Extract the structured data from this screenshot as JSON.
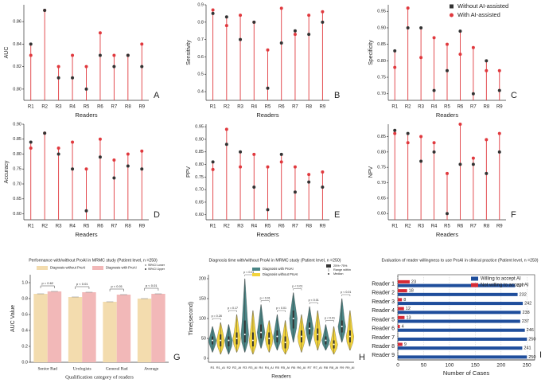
{
  "chart_data": [
    {
      "type": "lollipop",
      "panel": "A",
      "y_label": "AUC",
      "x_label": "Readers",
      "categories": [
        "R1",
        "R2",
        "R3",
        "R4",
        "R5",
        "R6",
        "R7",
        "R8",
        "R9"
      ],
      "series": [
        {
          "name": "Without AI-assisted",
          "color": "#333333",
          "values": [
            0.84,
            0.87,
            0.81,
            0.81,
            0.8,
            0.83,
            0.82,
            0.83,
            0.82
          ]
        },
        {
          "name": "With AI-assisted",
          "color": "#e0393e",
          "values": [
            0.83,
            0.87,
            0.82,
            0.83,
            0.82,
            0.85,
            0.83,
            0.83,
            0.84
          ]
        }
      ],
      "ylim": [
        0.79,
        0.875
      ],
      "yticks": [
        {
          "value": 0.8,
          "label": "0.80"
        },
        0.82,
        0.84,
        0.86
      ]
    },
    {
      "type": "lollipop",
      "panel": "B",
      "y_label": "Sensitivity",
      "x_label": "Readers",
      "categories": [
        "R1",
        "R2",
        "R3",
        "R4",
        "R5",
        "R6",
        "R7",
        "R8",
        "R9"
      ],
      "series": [
        {
          "name": "Without AI-assisted",
          "color": "#333333",
          "values": [
            0.85,
            0.83,
            0.7,
            0.8,
            0.42,
            0.68,
            0.75,
            0.73,
            0.8
          ]
        },
        {
          "name": "With AI-assisted",
          "color": "#e0393e",
          "values": [
            0.87,
            0.78,
            0.84,
            0.8,
            0.64,
            0.88,
            0.73,
            0.84,
            0.86
          ]
        }
      ],
      "ylim": [
        0.35,
        0.9
      ],
      "yticks": [
        0.4,
        0.5,
        0.6,
        0.7,
        0.8,
        0.9
      ]
    },
    {
      "type": "lollipop",
      "panel": "C",
      "y_label": "Specificity",
      "x_label": "Readers",
      "legend": "upper right",
      "categories": [
        "R1",
        "R2",
        "R3",
        "R4",
        "R5",
        "R6",
        "R7",
        "R8",
        "R9"
      ],
      "series": [
        {
          "name": "Without AI-assisted",
          "color": "#333333",
          "values": [
            0.83,
            0.9,
            0.9,
            0.71,
            0.77,
            0.89,
            0.7,
            0.8,
            0.71
          ]
        },
        {
          "name": "With AI-assisted",
          "color": "#e0393e",
          "values": [
            0.78,
            0.96,
            0.81,
            0.87,
            0.85,
            0.82,
            0.84,
            0.77,
            0.77
          ]
        }
      ],
      "ylim": [
        0.68,
        0.97
      ],
      "yticks": [
        {
          "value": 0.7,
          "label": "0.70"
        },
        0.75,
        {
          "value": 0.8,
          "label": "0.80"
        },
        0.85,
        {
          "value": 0.9,
          "label": "0.90"
        },
        0.95
      ]
    },
    {
      "type": "lollipop",
      "panel": "D",
      "y_label": "Accuracy",
      "x_label": "Readers",
      "categories": [
        "R1",
        "R2",
        "R3",
        "R4",
        "R5",
        "R6",
        "R7",
        "R8",
        "R9"
      ],
      "series": [
        {
          "name": "Without AI-assisted",
          "color": "#333333",
          "values": [
            0.84,
            0.87,
            0.8,
            0.75,
            0.61,
            0.79,
            0.72,
            0.76,
            0.75
          ]
        },
        {
          "name": "With AI-assisted",
          "color": "#e0393e",
          "values": [
            0.82,
            0.87,
            0.82,
            0.84,
            0.75,
            0.85,
            0.78,
            0.8,
            0.81
          ]
        }
      ],
      "ylim": [
        0.58,
        0.9
      ],
      "yticks": [
        {
          "value": 0.6,
          "label": "0.60"
        },
        0.65,
        {
          "value": 0.7,
          "label": "0.70"
        },
        0.75,
        {
          "value": 0.8,
          "label": "0.80"
        },
        0.85,
        {
          "value": 0.9,
          "label": "0.90"
        }
      ]
    },
    {
      "type": "lollipop",
      "panel": "E",
      "y_label": "PPV",
      "x_label": "Readers",
      "categories": [
        "R1",
        "R2",
        "R3",
        "R4",
        "R5",
        "R6",
        "R7",
        "R8",
        "R9"
      ],
      "series": [
        {
          "name": "Without AI-assisted",
          "color": "#333333",
          "values": [
            0.81,
            0.88,
            0.85,
            0.71,
            0.62,
            0.84,
            0.69,
            0.73,
            0.71
          ]
        },
        {
          "name": "With AI-assisted",
          "color": "#e0393e",
          "values": [
            0.78,
            0.94,
            0.79,
            0.84,
            0.79,
            0.81,
            0.79,
            0.76,
            0.77
          ]
        }
      ],
      "ylim": [
        0.58,
        0.96
      ],
      "yticks": [
        {
          "value": 0.6,
          "label": "0.60"
        },
        0.65,
        {
          "value": 0.7,
          "label": "0.70"
        },
        0.75,
        {
          "value": 0.8,
          "label": "0.80"
        },
        0.85,
        {
          "value": 0.9,
          "label": "0.90"
        },
        0.95
      ]
    },
    {
      "type": "lollipop",
      "panel": "F",
      "y_label": "NPV",
      "x_label": "Readers",
      "categories": [
        "R1",
        "R2",
        "R3",
        "R4",
        "R5",
        "R6",
        "R7",
        "R8",
        "R9"
      ],
      "series": [
        {
          "name": "Without AI-assisted",
          "color": "#333333",
          "values": [
            0.87,
            0.86,
            0.77,
            0.8,
            0.6,
            0.76,
            0.76,
            0.73,
            0.8
          ]
        },
        {
          "name": "With AI-assisted",
          "color": "#e0393e",
          "values": [
            0.86,
            0.83,
            0.85,
            0.83,
            0.73,
            0.89,
            0.78,
            0.84,
            0.86
          ]
        }
      ],
      "ylim": [
        0.58,
        0.89
      ],
      "yticks": [
        {
          "value": 0.6,
          "label": "0.60"
        },
        0.65,
        {
          "value": 0.7,
          "label": "0.70"
        },
        0.75,
        {
          "value": 0.8,
          "label": "0.80"
        },
        0.85
      ]
    },
    {
      "type": "bar",
      "panel": "G",
      "title": "Performance with/without ProAI in MRMC study (Patient level, n =250)",
      "y_label": "AUC Value",
      "x_label": "Qualification category of readers",
      "categories": [
        "Senior Rad",
        "Urologists",
        "General Rad",
        "Average"
      ],
      "series": [
        {
          "name": "Diagnosis without ProAI",
          "color": "#f3dcae",
          "values": [
            0.86,
            0.82,
            0.76,
            0.8
          ]
        },
        {
          "name": "Diagnosis with ProAI",
          "color": "#f2b8b8",
          "values": [
            0.89,
            0.88,
            0.85,
            0.86
          ]
        }
      ],
      "legend_extra": [
        "95%CI Lower",
        "95%CI Upper"
      ],
      "annotations": [
        "p = 0.62",
        "p < 0.01",
        "p < 0.01",
        "p < 0.01"
      ],
      "ylim": [
        0,
        1.1
      ],
      "yticks": [
        {
          "value": 0,
          "label": "0.0"
        },
        0.2,
        0.4,
        0.6,
        0.8,
        {
          "value": 1,
          "label": "1.0"
        }
      ]
    },
    {
      "type": "violin",
      "panel": "H",
      "title": "Diagnosis time with/without ProAI in MRMC study  (Patient level, n =250)",
      "y_label": "Time(second)",
      "x_label": "Readers",
      "categories": [
        "R1",
        "R1_AI",
        "R2",
        "R2_AI",
        "R3",
        "R3_AI",
        "R4",
        "R4_AI",
        "R5",
        "R5_AI",
        "R6",
        "R6_AI",
        "R7",
        "R7_AI",
        "R8",
        "R8_AI",
        "R9",
        "R9_AI"
      ],
      "series": [
        {
          "name": "Diagnosis with ProAI",
          "color": "#4a8585"
        },
        {
          "name": "Diagnosis without ProAI",
          "color": "#f2d33b"
        }
      ],
      "values": [
        45,
        45,
        45,
        50,
        60,
        45,
        65,
        50,
        55,
        40,
        100,
        55,
        75,
        60,
        45,
        35,
        80,
        55
      ],
      "q1": [
        35,
        30,
        30,
        35,
        40,
        30,
        50,
        35,
        40,
        25,
        75,
        40,
        60,
        45,
        35,
        25,
        65,
        40
      ],
      "q3": [
        55,
        60,
        55,
        65,
        95,
        65,
        85,
        65,
        70,
        55,
        120,
        70,
        90,
        75,
        55,
        45,
        95,
        70
      ],
      "lows": [
        15,
        10,
        10,
        15,
        15,
        10,
        25,
        15,
        20,
        10,
        40,
        15,
        30,
        20,
        20,
        10,
        40,
        20
      ],
      "highs": [
        80,
        90,
        85,
        110,
        200,
        120,
        135,
        95,
        110,
        95,
        165,
        110,
        130,
        120,
        85,
        80,
        150,
        120
      ],
      "legend_extra": [
        "25%~75%",
        "Range within",
        "Median"
      ],
      "annotations": [
        "p = 0.28",
        "p = 0.17",
        "p < 0.01",
        "p < 0.01",
        "p < 0.01",
        "p < 0.01",
        "p < 0.01",
        "p < 0.01",
        "p < 0.01"
      ],
      "ylim": [
        -10,
        210
      ],
      "yticks": [
        0,
        50,
        100,
        150,
        200
      ]
    },
    {
      "type": "hbar",
      "panel": "I",
      "title": "Evaluation of reader willingness to use ProAI in clinical practice  (Patient level, n =250)",
      "x_label": "Number of Cases",
      "legend": "upper right",
      "categories": [
        "Reader 1",
        "Reader 2",
        "Reader 3",
        "Reader 4",
        "Reader 5",
        "Reader 6",
        "Reader 7",
        "Reader 8",
        "Reader 9"
      ],
      "series": [
        {
          "name": "Willing to accept AI",
          "color": "#1f4e9c",
          "values": [
            227,
            232,
            242,
            238,
            237,
            246,
            250,
            241,
            250
          ]
        },
        {
          "name": "Not willing to accept AI",
          "color": "#d62a36",
          "values": [
            23,
            18,
            8,
            12,
            13,
            4,
            null,
            9,
            null
          ]
        }
      ],
      "xlim": [
        0,
        265
      ],
      "xticks": [
        0,
        50,
        100,
        150,
        200,
        250
      ]
    }
  ]
}
